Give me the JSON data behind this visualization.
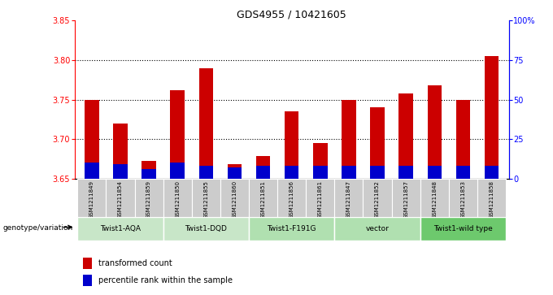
{
  "title": "GDS4955 / 10421605",
  "samples": [
    "GSM1211849",
    "GSM1211854",
    "GSM1211859",
    "GSM1211850",
    "GSM1211855",
    "GSM1211860",
    "GSM1211851",
    "GSM1211856",
    "GSM1211861",
    "GSM1211847",
    "GSM1211852",
    "GSM1211857",
    "GSM1211848",
    "GSM1211853",
    "GSM1211858"
  ],
  "red_values": [
    3.75,
    3.72,
    3.672,
    3.762,
    3.79,
    3.668,
    3.678,
    3.735,
    3.695,
    3.75,
    3.74,
    3.758,
    3.768,
    3.75,
    3.805
  ],
  "blue_percentile": [
    10,
    9,
    6,
    10,
    8,
    7,
    8,
    8,
    8,
    8,
    8,
    8,
    8,
    8,
    8
  ],
  "ylim_left": [
    3.65,
    3.85
  ],
  "ylim_right": [
    0,
    100
  ],
  "yticks_left": [
    3.65,
    3.7,
    3.75,
    3.8,
    3.85
  ],
  "yticks_right": [
    0,
    25,
    50,
    75,
    100
  ],
  "ytick_labels_right": [
    "0",
    "25",
    "50",
    "75",
    "100%"
  ],
  "bar_color": "#cc0000",
  "blue_color": "#0000cc",
  "groups": [
    {
      "label": "Twist1-AQA",
      "indices": [
        0,
        1,
        2
      ]
    },
    {
      "label": "Twist1-DQD",
      "indices": [
        3,
        4,
        5
      ]
    },
    {
      "label": "Twist1-F191G",
      "indices": [
        6,
        7,
        8
      ]
    },
    {
      "label": "vector",
      "indices": [
        9,
        10,
        11
      ]
    },
    {
      "label": "Twist1-wild type",
      "indices": [
        12,
        13,
        14
      ]
    }
  ],
  "group_colors": [
    "#c8e6c8",
    "#c8e6c8",
    "#b0e0b0",
    "#b0e0b0",
    "#6dc96d"
  ],
  "baseline": 3.65,
  "bg_color": "#ffffff",
  "sample_bg": "#cccccc",
  "legend_red": "transformed count",
  "legend_blue": "percentile rank within the sample",
  "genotype_label": "genotype/variation"
}
